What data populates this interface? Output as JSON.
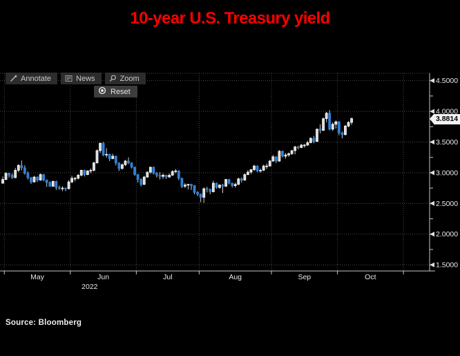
{
  "title": "10-year U.S. Treasury yield",
  "toolbar": {
    "annotate": "Annotate",
    "news": "News",
    "zoom": "Zoom",
    "reset": "Reset"
  },
  "last_price": "3.8814",
  "source": "Source: Bloomberg",
  "chart_data": {
    "type": "candlestick",
    "title": "10-year U.S. Treasury yield",
    "year_label": "2022",
    "x_month_labels": [
      "May",
      "Jun",
      "Jul",
      "Aug",
      "Sep",
      "Oct"
    ],
    "y_ticks": [
      4.5,
      4.0,
      3.5,
      3.0,
      2.5,
      2.0,
      1.5
    ],
    "y_tick_labels": [
      "4.5000",
      "4.0000",
      "3.5000",
      "3.0000",
      "2.5000",
      "2.0000",
      "1.5000"
    ],
    "y_minor_ticks": [
      4.25,
      3.75,
      3.25,
      2.75,
      2.25,
      1.75
    ],
    "ylim": [
      1.4,
      4.62
    ],
    "grid": "dotted",
    "legend": "none",
    "last_price": 3.8814,
    "colors": {
      "up_fill": "#d9d9d9",
      "up_stroke": "#ffffff",
      "down": "#2f80d8",
      "wick": "#cfcfcf",
      "grid": "#4c4c4c",
      "axis": "#c9c9c9",
      "text": "#e9e9e9",
      "title": "#fe0000",
      "badge_bg": "#f2f2f2"
    },
    "columns": [
      "date",
      "open",
      "high",
      "low",
      "close"
    ],
    "candles": [
      [
        "04-29",
        2.83,
        2.94,
        2.82,
        2.89
      ],
      [
        "05-02",
        2.89,
        3.01,
        2.88,
        2.99
      ],
      [
        "05-03",
        2.99,
        3.0,
        2.92,
        2.96
      ],
      [
        "05-04",
        2.96,
        2.99,
        2.9,
        2.92
      ],
      [
        "05-05",
        2.92,
        3.08,
        2.91,
        3.04
      ],
      [
        "05-06",
        3.04,
        3.14,
        3.01,
        3.12
      ],
      [
        "05-09",
        3.12,
        3.2,
        3.04,
        3.08
      ],
      [
        "05-10",
        3.08,
        3.12,
        2.97,
        2.99
      ],
      [
        "05-11",
        2.99,
        3.02,
        2.89,
        2.92
      ],
      [
        "05-12",
        2.92,
        2.93,
        2.82,
        2.85
      ],
      [
        "05-13",
        2.85,
        2.95,
        2.84,
        2.93
      ],
      [
        "05-16",
        2.93,
        2.94,
        2.85,
        2.88
      ],
      [
        "05-17",
        2.88,
        2.99,
        2.87,
        2.97
      ],
      [
        "05-18",
        2.97,
        2.98,
        2.86,
        2.88
      ],
      [
        "05-19",
        2.88,
        2.89,
        2.77,
        2.84
      ],
      [
        "05-20",
        2.84,
        2.86,
        2.77,
        2.78
      ],
      [
        "05-23",
        2.78,
        2.87,
        2.77,
        2.86
      ],
      [
        "05-24",
        2.86,
        2.87,
        2.72,
        2.76
      ],
      [
        "05-25",
        2.76,
        2.79,
        2.72,
        2.75
      ],
      [
        "05-26",
        2.75,
        2.78,
        2.7,
        2.75
      ],
      [
        "05-27",
        2.75,
        2.76,
        2.7,
        2.74
      ],
      [
        "05-31",
        2.74,
        2.88,
        2.73,
        2.85
      ],
      [
        "06-01",
        2.85,
        2.95,
        2.83,
        2.91
      ],
      [
        "06-02",
        2.91,
        2.93,
        2.86,
        2.91
      ],
      [
        "06-03",
        2.91,
        2.98,
        2.89,
        2.96
      ],
      [
        "06-06",
        2.96,
        3.05,
        2.94,
        3.04
      ],
      [
        "06-07",
        3.04,
        3.05,
        2.94,
        2.97
      ],
      [
        "06-08",
        2.97,
        3.04,
        2.96,
        3.03
      ],
      [
        "06-09",
        3.03,
        3.07,
        2.99,
        3.04
      ],
      [
        "06-10",
        3.04,
        3.18,
        3.02,
        3.16
      ],
      [
        "06-13",
        3.16,
        3.38,
        3.15,
        3.36
      ],
      [
        "06-14",
        3.36,
        3.49,
        3.32,
        3.48
      ],
      [
        "06-15",
        3.48,
        3.5,
        3.27,
        3.29
      ],
      [
        "06-16",
        3.29,
        3.4,
        3.25,
        3.3
      ],
      [
        "06-17",
        3.3,
        3.31,
        3.19,
        3.23
      ],
      [
        "06-21",
        3.23,
        3.31,
        3.22,
        3.27
      ],
      [
        "06-22",
        3.27,
        3.28,
        3.12,
        3.16
      ],
      [
        "06-23",
        3.16,
        3.17,
        3.03,
        3.07
      ],
      [
        "06-24",
        3.07,
        3.15,
        3.05,
        3.13
      ],
      [
        "06-27",
        3.13,
        3.21,
        3.11,
        3.19
      ],
      [
        "06-28",
        3.19,
        3.25,
        3.14,
        3.16
      ],
      [
        "06-29",
        3.16,
        3.17,
        3.07,
        3.09
      ],
      [
        "06-30",
        3.09,
        3.1,
        2.95,
        2.97
      ],
      [
        "07-01",
        2.97,
        2.98,
        2.84,
        2.89
      ],
      [
        "07-05",
        2.89,
        2.91,
        2.78,
        2.81
      ],
      [
        "07-06",
        2.81,
        2.95,
        2.8,
        2.93
      ],
      [
        "07-07",
        2.93,
        3.02,
        2.92,
        3.01
      ],
      [
        "07-08",
        3.01,
        3.1,
        2.98,
        3.09
      ],
      [
        "07-11",
        3.09,
        3.1,
        2.97,
        2.99
      ],
      [
        "07-12",
        2.99,
        3.01,
        2.92,
        2.96
      ],
      [
        "07-13",
        2.96,
        3.01,
        2.89,
        2.94
      ],
      [
        "07-14",
        2.94,
        2.99,
        2.9,
        2.96
      ],
      [
        "07-15",
        2.96,
        2.97,
        2.9,
        2.93
      ],
      [
        "07-18",
        2.93,
        2.99,
        2.92,
        2.96
      ],
      [
        "07-19",
        2.96,
        3.04,
        2.95,
        3.02
      ],
      [
        "07-20",
        3.02,
        3.06,
        2.99,
        3.03
      ],
      [
        "07-21",
        3.03,
        3.04,
        2.88,
        2.91
      ],
      [
        "07-22",
        2.91,
        2.92,
        2.75,
        2.78
      ],
      [
        "07-25",
        2.78,
        2.83,
        2.75,
        2.8
      ],
      [
        "07-26",
        2.8,
        2.82,
        2.73,
        2.81
      ],
      [
        "07-27",
        2.81,
        2.82,
        2.72,
        2.79
      ],
      [
        "07-28",
        2.79,
        2.8,
        2.65,
        2.68
      ],
      [
        "07-29",
        2.68,
        2.7,
        2.62,
        2.65
      ],
      [
        "08-01",
        2.65,
        2.66,
        2.52,
        2.6
      ],
      [
        "08-02",
        2.6,
        2.76,
        2.51,
        2.74
      ],
      [
        "08-03",
        2.74,
        2.77,
        2.68,
        2.73
      ],
      [
        "08-04",
        2.73,
        2.74,
        2.65,
        2.69
      ],
      [
        "08-05",
        2.69,
        2.87,
        2.68,
        2.83
      ],
      [
        "08-08",
        2.83,
        2.84,
        2.74,
        2.76
      ],
      [
        "08-09",
        2.76,
        2.81,
        2.74,
        2.8
      ],
      [
        "08-10",
        2.8,
        2.82,
        2.67,
        2.78
      ],
      [
        "08-11",
        2.78,
        2.9,
        2.77,
        2.89
      ],
      [
        "08-12",
        2.89,
        2.9,
        2.81,
        2.83
      ],
      [
        "08-15",
        2.83,
        2.84,
        2.76,
        2.79
      ],
      [
        "08-16",
        2.79,
        2.84,
        2.76,
        2.81
      ],
      [
        "08-17",
        2.81,
        2.92,
        2.8,
        2.9
      ],
      [
        "08-18",
        2.9,
        2.92,
        2.84,
        2.88
      ],
      [
        "08-19",
        2.88,
        2.99,
        2.87,
        2.97
      ],
      [
        "08-22",
        2.97,
        3.04,
        2.96,
        3.01
      ],
      [
        "08-23",
        3.01,
        3.06,
        2.98,
        3.05
      ],
      [
        "08-24",
        3.05,
        3.13,
        3.03,
        3.11
      ],
      [
        "08-25",
        3.11,
        3.12,
        3.01,
        3.03
      ],
      [
        "08-26",
        3.03,
        3.07,
        3.0,
        3.04
      ],
      [
        "08-29",
        3.04,
        3.13,
        3.03,
        3.11
      ],
      [
        "08-30",
        3.11,
        3.15,
        3.06,
        3.11
      ],
      [
        "08-31",
        3.11,
        3.21,
        3.1,
        3.19
      ],
      [
        "09-01",
        3.19,
        3.29,
        3.18,
        3.26
      ],
      [
        "09-02",
        3.26,
        3.27,
        3.16,
        3.19
      ],
      [
        "09-06",
        3.19,
        3.37,
        3.18,
        3.35
      ],
      [
        "09-07",
        3.35,
        3.36,
        3.25,
        3.27
      ],
      [
        "09-08",
        3.27,
        3.32,
        3.23,
        3.29
      ],
      [
        "09-09",
        3.29,
        3.33,
        3.26,
        3.31
      ],
      [
        "09-12",
        3.31,
        3.37,
        3.29,
        3.36
      ],
      [
        "09-13",
        3.36,
        3.44,
        3.3,
        3.42
      ],
      [
        "09-14",
        3.42,
        3.44,
        3.38,
        3.41
      ],
      [
        "09-15",
        3.41,
        3.47,
        3.4,
        3.45
      ],
      [
        "09-16",
        3.45,
        3.47,
        3.41,
        3.45
      ],
      [
        "09-19",
        3.45,
        3.52,
        3.44,
        3.49
      ],
      [
        "09-20",
        3.49,
        3.58,
        3.48,
        3.56
      ],
      [
        "09-21",
        3.56,
        3.6,
        3.48,
        3.51
      ],
      [
        "09-22",
        3.51,
        3.72,
        3.5,
        3.71
      ],
      [
        "09-23",
        3.71,
        3.79,
        3.64,
        3.69
      ],
      [
        "09-26",
        3.69,
        3.9,
        3.68,
        3.88
      ],
      [
        "09-27",
        3.88,
        3.99,
        3.82,
        3.97
      ],
      [
        "09-28",
        3.97,
        4.02,
        3.69,
        3.71
      ],
      [
        "09-29",
        3.71,
        3.82,
        3.68,
        3.79
      ],
      [
        "09-30",
        3.79,
        3.85,
        3.72,
        3.83
      ],
      [
        "10-03",
        3.83,
        3.84,
        3.61,
        3.65
      ],
      [
        "10-04",
        3.65,
        3.67,
        3.56,
        3.62
      ],
      [
        "10-05",
        3.62,
        3.78,
        3.61,
        3.76
      ],
      [
        "10-06",
        3.76,
        3.84,
        3.74,
        3.82
      ],
      [
        "10-07",
        3.82,
        3.9,
        3.78,
        3.8814
      ]
    ]
  }
}
